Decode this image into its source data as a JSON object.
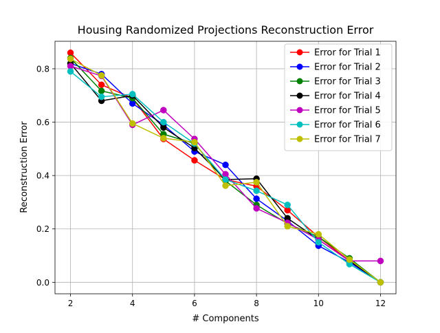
{
  "chart_data": {
    "type": "line",
    "title": "Housing Randomized Projections Reconstruction Error",
    "xlabel": "# Components",
    "ylabel": "Reconstruction Error",
    "x": [
      2,
      3,
      4,
      5,
      6,
      7,
      8,
      9,
      10,
      11,
      12
    ],
    "xlim": [
      1.5,
      12.5
    ],
    "ylim": [
      -0.043,
      0.903
    ],
    "xticks": [
      2,
      4,
      6,
      8,
      10,
      12
    ],
    "yticks": [
      0.0,
      0.2,
      0.4,
      0.6,
      0.8
    ],
    "ytick_labels": [
      "0.0",
      "0.2",
      "0.4",
      "0.6",
      "0.8"
    ],
    "grid": true,
    "legend_position": "upper right",
    "series": [
      {
        "name": "Error for Trial 1",
        "color": "#ff0000",
        "values": [
          0.86,
          0.74,
          0.69,
          0.537,
          0.457,
          0.385,
          0.36,
          0.27,
          0.17,
          0.08,
          0.0
        ]
      },
      {
        "name": "Error for Trial 2",
        "color": "#0000ff",
        "values": [
          0.82,
          0.78,
          0.67,
          0.59,
          0.49,
          0.44,
          0.313,
          0.23,
          0.137,
          0.075,
          0.0
        ]
      },
      {
        "name": "Error for Trial 3",
        "color": "#008000",
        "values": [
          0.84,
          0.717,
          0.69,
          0.555,
          0.52,
          0.38,
          0.29,
          0.22,
          0.17,
          0.09,
          0.0
        ]
      },
      {
        "name": "Error for Trial 4",
        "color": "#000000",
        "values": [
          0.82,
          0.68,
          0.7,
          0.58,
          0.503,
          0.385,
          0.388,
          0.24,
          0.16,
          0.08,
          0.0
        ]
      },
      {
        "name": "Error for Trial 5",
        "color": "#bf00bf",
        "values": [
          0.81,
          0.773,
          0.59,
          0.645,
          0.537,
          0.405,
          0.277,
          0.223,
          0.16,
          0.08,
          0.08
        ]
      },
      {
        "name": "Error for Trial 6",
        "color": "#00bfbf",
        "values": [
          0.79,
          0.695,
          0.705,
          0.6,
          0.52,
          0.385,
          0.343,
          0.29,
          0.15,
          0.068,
          0.0
        ]
      },
      {
        "name": "Error for Trial 7",
        "color": "#bfbf00",
        "values": [
          0.837,
          0.775,
          0.595,
          0.54,
          0.525,
          0.362,
          0.375,
          0.21,
          0.18,
          0.085,
          0.0
        ]
      }
    ]
  }
}
